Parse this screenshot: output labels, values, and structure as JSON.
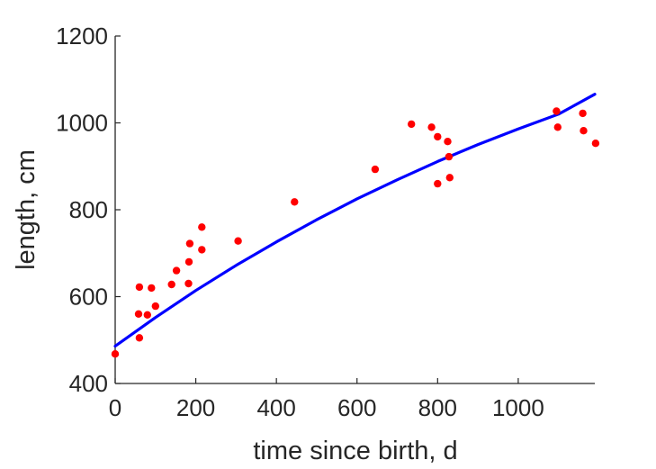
{
  "chart_data": {
    "type": "scatter",
    "xlabel": "time since birth, d",
    "ylabel": "length, cm",
    "xlim": [
      0,
      1190
    ],
    "ylim": [
      400,
      1200
    ],
    "xticks": [
      0,
      200,
      400,
      600,
      800,
      1000
    ],
    "yticks": [
      400,
      600,
      800,
      1000,
      1200
    ],
    "grid": false,
    "legend": "none",
    "series": [
      {
        "kind": "points",
        "color": "#ff0000",
        "points": [
          [
            0,
            468
          ],
          [
            60,
            505
          ],
          [
            58,
            560
          ],
          [
            60,
            622
          ],
          [
            80,
            558
          ],
          [
            90,
            620
          ],
          [
            100,
            578
          ],
          [
            140,
            628
          ],
          [
            152,
            660
          ],
          [
            182,
            630
          ],
          [
            183,
            680
          ],
          [
            185,
            722
          ],
          [
            215,
            708
          ],
          [
            215,
            760
          ],
          [
            305,
            728
          ],
          [
            445,
            818
          ],
          [
            645,
            893
          ],
          [
            735,
            997
          ],
          [
            785,
            990
          ],
          [
            800,
            860
          ],
          [
            800,
            968
          ],
          [
            825,
            957
          ],
          [
            828,
            922
          ],
          [
            830,
            874
          ],
          [
            1095,
            1027
          ],
          [
            1098,
            990
          ],
          [
            1160,
            1022
          ],
          [
            1162,
            982
          ],
          [
            1192,
            953
          ]
        ]
      },
      {
        "kind": "curve",
        "color": "#0000ff",
        "points": [
          [
            0,
            486
          ],
          [
            100,
            552
          ],
          [
            200,
            614
          ],
          [
            300,
            672
          ],
          [
            400,
            726
          ],
          [
            500,
            777
          ],
          [
            600,
            825
          ],
          [
            700,
            869
          ],
          [
            800,
            911
          ],
          [
            900,
            950
          ],
          [
            1000,
            986
          ],
          [
            1100,
            1020
          ],
          [
            1190,
            1066
          ]
        ]
      }
    ]
  }
}
